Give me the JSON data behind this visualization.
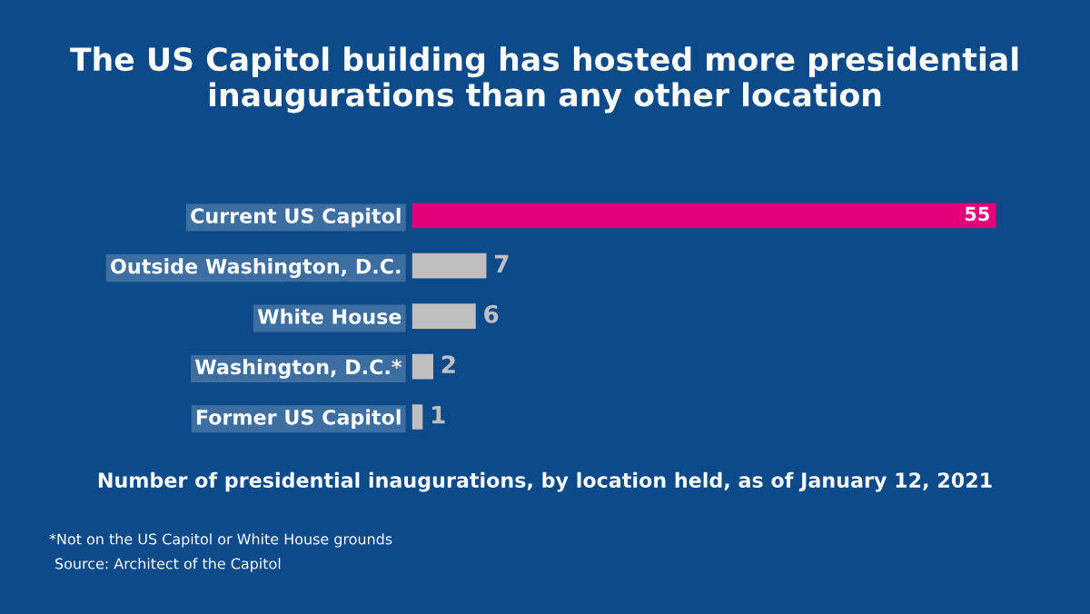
{
  "chart_data": {
    "type": "bar",
    "orientation": "horizontal",
    "title": "The US Capitol building has hosted more presidential inaugurations than any other location",
    "categories": [
      "Current US Capitol",
      "Outside Washington, D.C.",
      "White House",
      "Washington, D.C.*",
      "Former US Capitol"
    ],
    "values": [
      55,
      7,
      6,
      2,
      1
    ],
    "colors": [
      "#e2007a",
      "#bfbfbf",
      "#bfbfbf",
      "#bfbfbf",
      "#bfbfbf"
    ],
    "data_labels": true,
    "grid": false,
    "legend": false,
    "tick_labels": "y",
    "xlabel": "Number of presidential inaugurations, by location held, as of January 12, 2021",
    "annotations": [
      "*Not on the US Capitol or White House grounds",
      "Source: Architect of the Capitol"
    ]
  }
}
